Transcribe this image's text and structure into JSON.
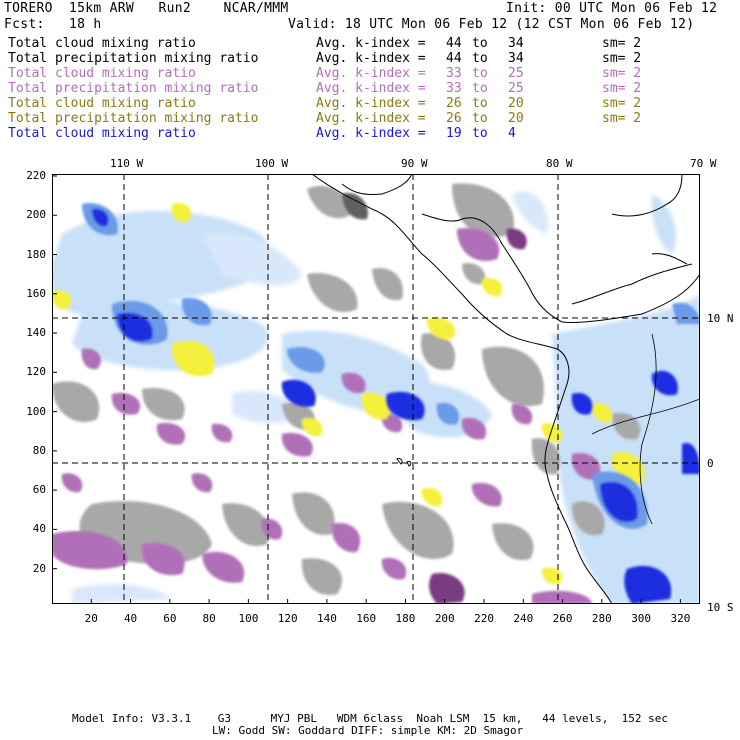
{
  "header": {
    "model": "TORERO",
    "grid": "15km ARW",
    "run": "Run2",
    "org": "NCAR/MMM",
    "init": "Init: 00 UTC Mon 06 Feb 12",
    "fcst_label": "Fcst:",
    "fcst_value": "18 h",
    "valid": "Valid: 18 UTC Mon 06 Feb 12 (12 CST Mon 06 Feb 12)"
  },
  "legend": [
    {
      "field": "Total cloud mixing ratio",
      "stat": "Avg. k-index =",
      "k1": "44",
      "to": "to",
      "k2": "34",
      "sm": "sm= 2",
      "color": "#000000"
    },
    {
      "field": "Total precipitation mixing ratio",
      "stat": "Avg. k-index =",
      "k1": "44",
      "to": "to",
      "k2": "34",
      "sm": "sm= 2",
      "color": "#000000"
    },
    {
      "field": "Total cloud mixing ratio",
      "stat": "Avg. k-index =",
      "k1": "33",
      "to": "to",
      "k2": "25",
      "sm": "sm= 2",
      "color": "#b070b8"
    },
    {
      "field": "Total precipitation mixing ratio",
      "stat": "Avg. k-index =",
      "k1": "33",
      "to": "to",
      "k2": "25",
      "sm": "sm= 2",
      "color": "#b070b8"
    },
    {
      "field": "Total cloud mixing ratio",
      "stat": "Avg. k-index =",
      "k1": "26",
      "to": "to",
      "k2": "20",
      "sm": "sm= 2",
      "color": "#8a7a10"
    },
    {
      "field": "Total precipitation mixing ratio",
      "stat": "Avg. k-index =",
      "k1": "26",
      "to": "to",
      "k2": "20",
      "sm": "sm= 2",
      "color": "#8a7a10"
    },
    {
      "field": "Total cloud mixing ratio",
      "stat": "Avg. k-index =",
      "k1": "19",
      "to": "to",
      "k2": "4",
      "sm": "",
      "color": "#1818d0"
    }
  ],
  "axes": {
    "lon_labels": [
      "110 W",
      "100 W",
      "90 W",
      "80 W",
      "70 W"
    ],
    "lat_labels": [
      "10 N",
      "0",
      "10 S"
    ],
    "x_ticks": [
      "20",
      "40",
      "60",
      "80",
      "100",
      "120",
      "140",
      "160",
      "180",
      "200",
      "220",
      "240",
      "260",
      "280",
      "300",
      "320"
    ],
    "y_ticks": [
      "220",
      "200",
      "180",
      "160",
      "140",
      "120",
      "100",
      "80",
      "60",
      "40",
      "20"
    ]
  },
  "colors": {
    "gray": "#a8a8a8",
    "dark_gray": "#606060",
    "purple": "#b070b8",
    "dark_purple": "#7a3a80",
    "yellow": "#f5f03c",
    "light_blue": "#c8e0f8",
    "mid_blue": "#6a9ae8",
    "blue": "#1a2ee0"
  },
  "footer": {
    "line1": "Model Info: V3.3.1    G3      MYJ PBL   WDM 6class  Noah LSM  15 km,   44 levels,  152 sec",
    "line2": "LW: Godd SW: Goddard DIFF: simple KM: 2D Smagor"
  }
}
